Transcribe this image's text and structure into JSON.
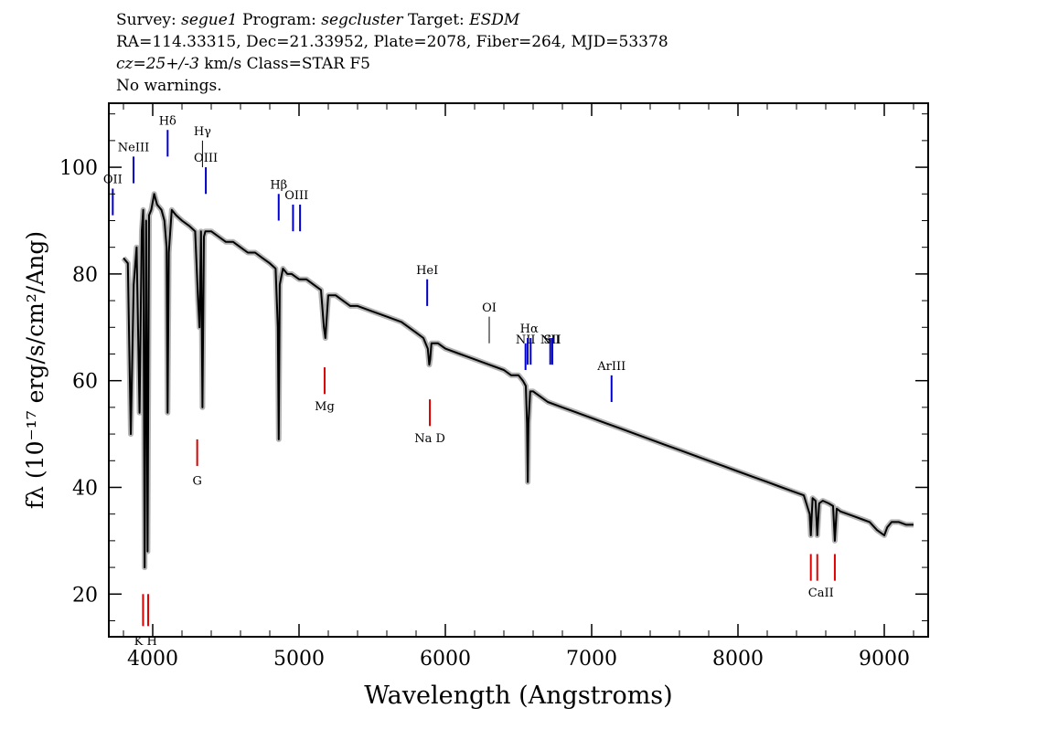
{
  "header": {
    "survey_label": "Survey:",
    "survey": "segue1",
    "program_label": "Program:",
    "program": "segcluster",
    "target_label": "Target:",
    "target": "ESDM",
    "coords": "RA=114.33315, Dec=21.33952, Plate=2078, Fiber=264, MJD=53378",
    "cz_value": "cz=25+/-3",
    "cz_rest": "km/s Class=STAR F5",
    "warnings": "No warnings."
  },
  "chart_data": {
    "type": "line",
    "xlabel": "Wavelength (Angstroms)",
    "ylabel": "fλ (10⁻¹⁷ erg/s/cm²/Ang)",
    "xlim": [
      3700,
      9300
    ],
    "ylim": [
      12,
      112
    ],
    "xticks": [
      4000,
      5000,
      6000,
      7000,
      8000,
      9000
    ],
    "yticks": [
      20,
      40,
      60,
      80,
      100
    ],
    "grid": false,
    "colors": {
      "flux": "#000000",
      "error": "#b4b4b4",
      "emission": "#0000cc",
      "absorption": "#dd0000",
      "reference": "#000000"
    },
    "series": [
      {
        "role": "flux",
        "x": [
          3800,
          3830,
          3850,
          3870,
          3890,
          3910,
          3925,
          3935,
          3945,
          3955,
          3965,
          3975,
          3990,
          4010,
          4030,
          4060,
          4080,
          4095,
          4102,
          4110,
          4130,
          4160,
          4200,
          4250,
          4290,
          4310,
          4320,
          4330,
          4340,
          4350,
          4360,
          4400,
          4450,
          4500,
          4550,
          4600,
          4650,
          4700,
          4750,
          4800,
          4840,
          4855,
          4861,
          4868,
          4890,
          4920,
          4950,
          5000,
          5050,
          5100,
          5150,
          5170,
          5180,
          5200,
          5250,
          5300,
          5350,
          5400,
          5500,
          5600,
          5700,
          5800,
          5850,
          5880,
          5890,
          5896,
          5905,
          5950,
          6000,
          6100,
          6200,
          6300,
          6400,
          6450,
          6500,
          6530,
          6550,
          6558,
          6563,
          6568,
          6580,
          6600,
          6650,
          6700,
          6800,
          6900,
          7000,
          7100,
          7200,
          7300,
          7400,
          7500,
          7600,
          7700,
          7800,
          7900,
          8000,
          8100,
          8200,
          8300,
          8400,
          8450,
          8490,
          8498,
          8510,
          8530,
          8542,
          8555,
          8580,
          8620,
          8650,
          8662,
          8675,
          8700,
          8750,
          8800,
          8850,
          8900,
          8950,
          9000,
          9020,
          9050,
          9100,
          9150,
          9200
        ],
        "y": [
          83,
          82,
          50,
          78,
          85,
          54,
          88,
          92,
          25,
          90,
          28,
          91,
          92,
          95,
          93,
          92,
          90,
          85,
          54,
          84,
          92,
          91,
          90,
          89,
          88,
          75,
          70,
          88,
          55,
          87,
          88,
          88,
          87,
          86,
          86,
          85,
          84,
          84,
          83,
          82,
          81,
          70,
          49,
          78,
          81,
          80,
          80,
          79,
          79,
          78,
          77,
          70,
          68,
          76,
          76,
          75,
          74,
          74,
          73,
          72,
          71,
          69,
          68,
          66,
          63,
          64,
          67,
          67,
          66,
          65,
          64,
          63,
          62,
          61,
          61,
          60,
          59,
          52,
          41,
          52,
          58,
          58,
          57,
          56,
          55,
          54,
          53,
          52,
          51,
          50,
          49,
          48,
          47,
          46,
          45,
          44,
          43,
          42,
          41,
          40,
          39,
          38.5,
          35,
          31,
          38,
          37.5,
          31,
          37,
          37.5,
          37,
          36.5,
          30,
          36,
          35.5,
          35,
          34.5,
          34,
          33.5,
          32,
          31,
          32.5,
          33.5,
          33.5,
          33,
          33
        ]
      }
    ],
    "lines": [
      {
        "label": "OII",
        "wavelengths": [
          3727
        ],
        "kind": "emission",
        "y_from": 91,
        "y_to": 96,
        "label_y": 97
      },
      {
        "label": "NeIII",
        "wavelengths": [
          3869
        ],
        "kind": "emission",
        "y_from": 97,
        "y_to": 102,
        "label_y": 103
      },
      {
        "label": "Hδ",
        "wavelengths": [
          4102
        ],
        "kind": "emission",
        "y_from": 102,
        "y_to": 107,
        "label_y": 108
      },
      {
        "label": "Hγ",
        "wavelengths": [
          4340
        ],
        "kind": "reference",
        "y_from": 100,
        "y_to": 105,
        "label_y": 106
      },
      {
        "label": "OIII",
        "wavelengths": [
          4363
        ],
        "kind": "emission",
        "y_from": 95,
        "y_to": 100,
        "label_y": 101
      },
      {
        "label": "Hβ",
        "wavelengths": [
          4861
        ],
        "kind": "emission",
        "y_from": 90,
        "y_to": 95,
        "label_y": 96
      },
      {
        "label": "OIII",
        "wavelengths": [
          4959,
          5007
        ],
        "kind": "emission",
        "y_from": 88,
        "y_to": 93,
        "label_y": 94
      },
      {
        "label": "HeI",
        "wavelengths": [
          5876
        ],
        "kind": "emission",
        "y_from": 74,
        "y_to": 79,
        "label_y": 80
      },
      {
        "label": "OI",
        "wavelengths": [
          6300
        ],
        "kind": "reference",
        "y_from": 67,
        "y_to": 72,
        "label_y": 73
      },
      {
        "label": "NII",
        "wavelengths": [
          6548
        ],
        "kind": "emission",
        "y_from": 62,
        "y_to": 67,
        "label_y": 67
      },
      {
        "label": "Hα",
        "wavelengths": [
          6563,
          6583
        ],
        "kind": "emission",
        "y_from": 63,
        "y_to": 68,
        "label_y": 69
      },
      {
        "label": "NII",
        "wavelengths": [
          6717
        ],
        "kind": "emission",
        "y_from": 63,
        "y_to": 68,
        "label_y": 67
      },
      {
        "label": "SII",
        "wavelengths": [
          6731
        ],
        "kind": "emission",
        "y_from": 63,
        "y_to": 68,
        "label_y": 67
      },
      {
        "label": "ArIII",
        "wavelengths": [
          7136
        ],
        "kind": "emission",
        "y_from": 56,
        "y_to": 61,
        "label_y": 62
      },
      {
        "label": "G",
        "wavelengths": [
          4304
        ],
        "kind": "absorption",
        "y_from": 44,
        "y_to": 49,
        "label_y": 40.5
      },
      {
        "label": "Mg",
        "wavelengths": [
          5175
        ],
        "kind": "absorption",
        "y_from": 57.5,
        "y_to": 62.5,
        "label_y": 54.5
      },
      {
        "label": "Na  D",
        "wavelengths": [
          5894
        ],
        "kind": "absorption",
        "y_from": 51.5,
        "y_to": 56.5,
        "label_y": 48.5
      },
      {
        "label": "CaII",
        "wavelengths": [
          8498,
          8542,
          8662
        ],
        "kind": "absorption",
        "y_from": 22.5,
        "y_to": 27.5,
        "label_y": 19.5
      },
      {
        "label": "K H",
        "wavelengths": [
          3934,
          3969
        ],
        "kind": "absorption",
        "y_from": 14,
        "y_to": 20,
        "label_y": 10.5
      }
    ]
  }
}
